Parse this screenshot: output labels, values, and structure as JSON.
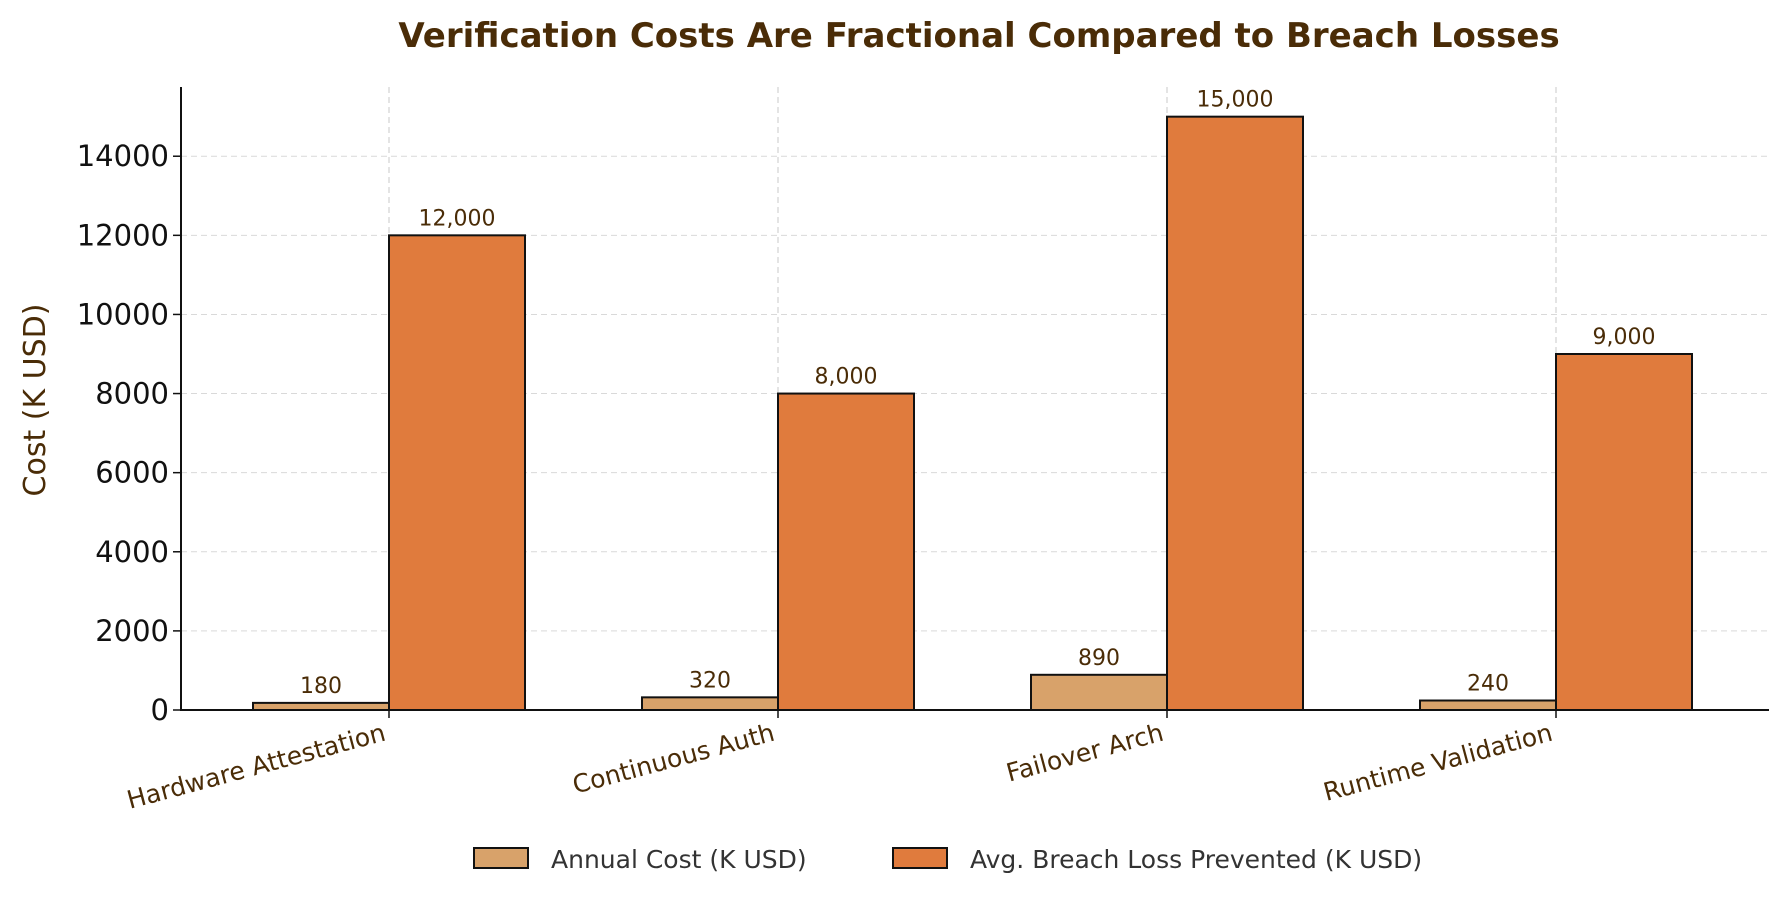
{
  "chart_data": {
    "type": "bar",
    "title": "Verification Costs Are Fractional Compared to Breach Losses",
    "xlabel": "",
    "ylabel": "Cost (K USD)",
    "categories": [
      "Hardware Attestation",
      "Continuous Auth",
      "Failover Arch",
      "Runtime Validation"
    ],
    "series": [
      {
        "name": "Annual Cost (K USD)",
        "values": [
          180,
          320,
          890,
          240
        ],
        "labels": [
          "180",
          "320",
          "890",
          "240"
        ],
        "color": "#D8A26A"
      },
      {
        "name": "Avg. Breach Loss Prevented (K USD)",
        "values": [
          12000,
          8000,
          15000,
          9000
        ],
        "labels": [
          "12,000",
          "8,000",
          "15,000",
          "9,000"
        ],
        "color": "#E07B3D"
      }
    ],
    "ylim": [
      0,
      15750
    ],
    "yticks": [
      0,
      2000,
      4000,
      6000,
      8000,
      10000,
      12000,
      14000
    ],
    "grid": true,
    "legend_position": "bottom-center",
    "text_color": "#4A2C07"
  }
}
